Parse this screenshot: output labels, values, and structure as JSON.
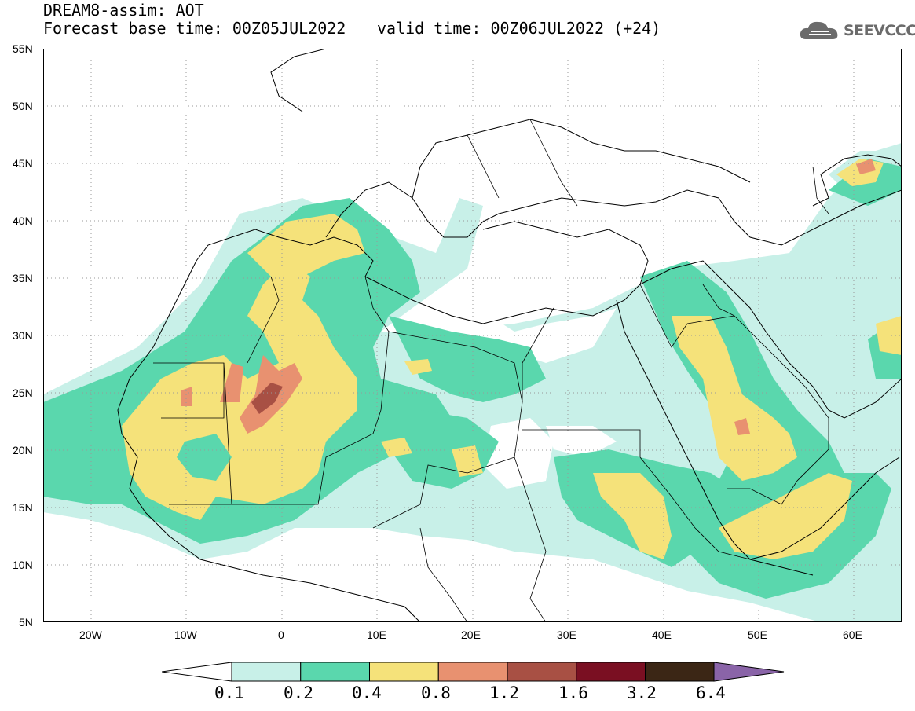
{
  "header": {
    "title_line1": "DREAM8-assim: AOT",
    "title_line2": "Forecast base time: 00Z05JUL2022",
    "valid_time": "valid time: 00Z06JUL2022 (+24)",
    "logo_text": "SEEVCCC"
  },
  "map": {
    "lat_labels": [
      "55N",
      "50N",
      "45N",
      "40N",
      "35N",
      "30N",
      "25N",
      "20N",
      "15N",
      "10N",
      "5N"
    ],
    "lon_labels": [
      "20W",
      "10W",
      "0",
      "10E",
      "20E",
      "30E",
      "40E",
      "50E",
      "60E"
    ],
    "lat_range": [
      5,
      55
    ],
    "lon_range": [
      -25,
      65
    ],
    "gridlines": "dotted"
  },
  "legend": {
    "levels": [
      "0.1",
      "0.2",
      "0.4",
      "0.8",
      "1.2",
      "1.6",
      "3.2",
      "6.4"
    ],
    "colors": [
      "#c8f0e8",
      "#5ad7ad",
      "#f5e27a",
      "#e89170",
      "#a85044",
      "#7a0f22",
      "#3b2615",
      "#8a64a8"
    ],
    "under_color": "#ffffff"
  }
}
